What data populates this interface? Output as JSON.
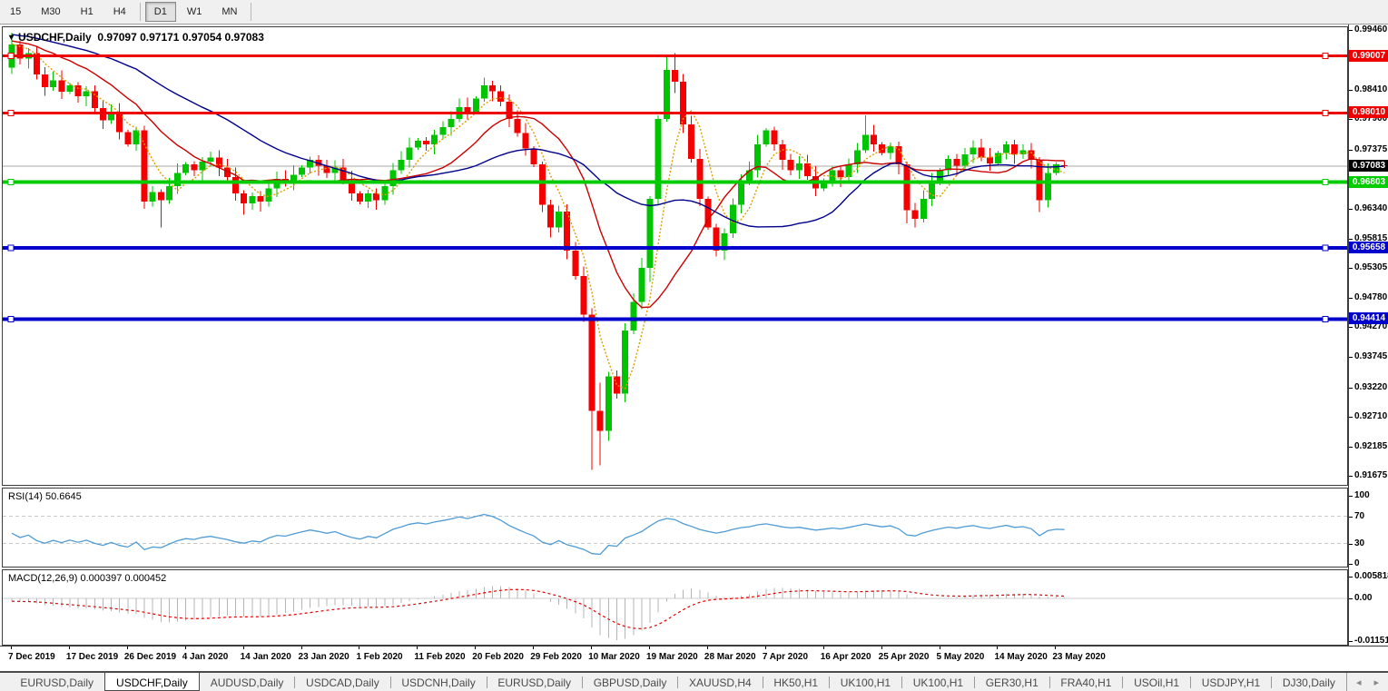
{
  "toolbar": {
    "timeframes": [
      "15",
      "M30",
      "H1",
      "H4",
      "D1",
      "W1",
      "MN"
    ],
    "active": "D1",
    "separators_after": [
      "H4",
      "MN"
    ]
  },
  "chart": {
    "dropdown_icon": "▾",
    "title": "USDCHF,Daily",
    "ohlc": "0.97097 0.97171 0.97054 0.97083"
  },
  "chart_data": {
    "type": "candlestick",
    "symbol": "USDCHF",
    "period": "Daily",
    "ohlc_header": {
      "open": "0.97097",
      "high": "0.97171",
      "low": "0.97054",
      "close": "0.97083"
    },
    "x_labels": [
      "7 Dec 2019",
      "17 Dec 2019",
      "26 Dec 2019",
      "4 Jan 2020",
      "14 Jan 2020",
      "23 Jan 2020",
      "1 Feb 2020",
      "11 Feb 2020",
      "20 Feb 2020",
      "29 Feb 2020",
      "10 Mar 2020",
      "19 Mar 2020",
      "28 Mar 2020",
      "7 Apr 2020",
      "16 Apr 2020",
      "25 Apr 2020",
      "5 May 2020",
      "14 May 2020",
      "23 May 2020"
    ],
    "bars_per_label": 7,
    "axis_ticks": [
      "0.99460",
      "0.98410",
      "0.97900",
      "0.97375",
      "0.96340",
      "0.95815",
      "0.95305",
      "0.94780",
      "0.94270",
      "0.93745",
      "0.93220",
      "0.92710",
      "0.92185",
      "0.91675"
    ],
    "levels": [
      {
        "value": 0.99007,
        "label": "0.99007",
        "color": "#ee0000",
        "thickness": 3,
        "kind": "resistance"
      },
      {
        "value": 0.9801,
        "label": "0.98010",
        "color": "#ee0000",
        "thickness": 3,
        "kind": "resistance"
      },
      {
        "value": 0.96803,
        "label": "0.96803",
        "color": "#00cc00",
        "thickness": 4,
        "kind": "support"
      },
      {
        "value": 0.95658,
        "label": "0.95658",
        "color": "#0000cc",
        "thickness": 4,
        "kind": "support"
      },
      {
        "value": 0.94414,
        "label": "0.94414",
        "color": "#0000cc",
        "thickness": 4,
        "kind": "support"
      }
    ],
    "current_price": {
      "value": 0.97083,
      "label": "0.97083",
      "line_color": "#a8a8a8",
      "badge_color": "#000000"
    },
    "up_color": "#00c400",
    "down_color": "#f40000",
    "candles_oc": [
      [
        0.988,
        0.9921
      ],
      [
        0.9921,
        0.9896
      ],
      [
        0.9896,
        0.9906
      ],
      [
        0.9906,
        0.9868
      ],
      [
        0.9868,
        0.9846
      ],
      [
        0.9846,
        0.9858
      ],
      [
        0.9858,
        0.9838
      ],
      [
        0.9838,
        0.9849
      ],
      [
        0.9849,
        0.983
      ],
      [
        0.983,
        0.9839
      ],
      [
        0.9839,
        0.981
      ],
      [
        0.981,
        0.9788
      ],
      [
        0.9788,
        0.9801
      ],
      [
        0.9801,
        0.9768
      ],
      [
        0.9768,
        0.9746
      ],
      [
        0.9746,
        0.9771
      ],
      [
        0.9771,
        0.9646
      ],
      [
        0.9646,
        0.9663
      ],
      [
        0.9663,
        0.9649
      ],
      [
        0.9649,
        0.9673
      ],
      [
        0.9673,
        0.9696
      ],
      [
        0.9696,
        0.9711
      ],
      [
        0.9711,
        0.9701
      ],
      [
        0.9701,
        0.9716
      ],
      [
        0.9716,
        0.9723
      ],
      [
        0.9723,
        0.9706
      ],
      [
        0.9706,
        0.9689
      ],
      [
        0.9689,
        0.9661
      ],
      [
        0.9661,
        0.9643
      ],
      [
        0.9643,
        0.9656
      ],
      [
        0.9656,
        0.9646
      ],
      [
        0.9646,
        0.9669
      ],
      [
        0.9669,
        0.9686
      ],
      [
        0.9686,
        0.9679
      ],
      [
        0.9679,
        0.9693
      ],
      [
        0.9693,
        0.9706
      ],
      [
        0.9706,
        0.9719
      ],
      [
        0.9719,
        0.9709
      ],
      [
        0.9709,
        0.9696
      ],
      [
        0.9696,
        0.9706
      ],
      [
        0.9706,
        0.9683
      ],
      [
        0.9683,
        0.9661
      ],
      [
        0.9661,
        0.9646
      ],
      [
        0.9646,
        0.9661
      ],
      [
        0.9661,
        0.9649
      ],
      [
        0.9649,
        0.9673
      ],
      [
        0.9673,
        0.9701
      ],
      [
        0.9701,
        0.9719
      ],
      [
        0.9719,
        0.9741
      ],
      [
        0.9741,
        0.9753
      ],
      [
        0.9753,
        0.9746
      ],
      [
        0.9746,
        0.9763
      ],
      [
        0.9763,
        0.9776
      ],
      [
        0.9776,
        0.9791
      ],
      [
        0.9791,
        0.9811
      ],
      [
        0.9811,
        0.9803
      ],
      [
        0.9803,
        0.9826
      ],
      [
        0.9826,
        0.9849
      ],
      [
        0.9849,
        0.9839
      ],
      [
        0.9839,
        0.9821
      ],
      [
        0.9821,
        0.9791
      ],
      [
        0.9791,
        0.9766
      ],
      [
        0.9766,
        0.9739
      ],
      [
        0.9739,
        0.9711
      ],
      [
        0.9711,
        0.9641
      ],
      [
        0.9641,
        0.9601
      ],
      [
        0.9601,
        0.9629
      ],
      [
        0.9629,
        0.9561
      ],
      [
        0.9561,
        0.9516
      ],
      [
        0.9516,
        0.9449
      ],
      [
        0.9449,
        0.9281
      ],
      [
        0.9281,
        0.9246
      ],
      [
        0.9246,
        0.9341
      ],
      [
        0.9341,
        0.9311
      ],
      [
        0.9311,
        0.9421
      ],
      [
        0.9421,
        0.9471
      ],
      [
        0.9471,
        0.9531
      ],
      [
        0.9531,
        0.9651
      ],
      [
        0.9651,
        0.9791
      ],
      [
        0.9791,
        0.9876
      ],
      [
        0.9876,
        0.9856
      ],
      [
        0.9856,
        0.9781
      ],
      [
        0.9781,
        0.9721
      ],
      [
        0.9721,
        0.9651
      ],
      [
        0.9651,
        0.9601
      ],
      [
        0.9601,
        0.9561
      ],
      [
        0.9561,
        0.9591
      ],
      [
        0.9591,
        0.9641
      ],
      [
        0.9641,
        0.9681
      ],
      [
        0.9681,
        0.9701
      ],
      [
        0.9701,
        0.9746
      ],
      [
        0.9746,
        0.9771
      ],
      [
        0.9771,
        0.9746
      ],
      [
        0.9746,
        0.9719
      ],
      [
        0.9719,
        0.9701
      ],
      [
        0.9701,
        0.9713
      ],
      [
        0.9713,
        0.9691
      ],
      [
        0.9691,
        0.9669
      ],
      [
        0.9669,
        0.9683
      ],
      [
        0.9683,
        0.9701
      ],
      [
        0.9701,
        0.9689
      ],
      [
        0.9689,
        0.9711
      ],
      [
        0.9711,
        0.9736
      ],
      [
        0.9736,
        0.9763
      ],
      [
        0.9763,
        0.9746
      ],
      [
        0.9746,
        0.9731
      ],
      [
        0.9731,
        0.9743
      ],
      [
        0.9743,
        0.9711
      ],
      [
        0.9711,
        0.9631
      ],
      [
        0.9631,
        0.9616
      ],
      [
        0.9616,
        0.9651
      ],
      [
        0.9651,
        0.9679
      ],
      [
        0.9679,
        0.9701
      ],
      [
        0.9701,
        0.9721
      ],
      [
        0.9721,
        0.9709
      ],
      [
        0.9709,
        0.9729
      ],
      [
        0.9729,
        0.9741
      ],
      [
        0.9741,
        0.9723
      ],
      [
        0.9723,
        0.9713
      ],
      [
        0.9713,
        0.9731
      ],
      [
        0.9731,
        0.9746
      ],
      [
        0.9746,
        0.9729
      ],
      [
        0.9729,
        0.9736
      ],
      [
        0.9736,
        0.9719
      ],
      [
        0.9719,
        0.9649
      ],
      [
        0.9649,
        0.9696
      ],
      [
        0.9696,
        0.9711
      ],
      [
        0.97097,
        0.97083
      ]
    ],
    "wick_overrides": {
      "0": [
        0.9941,
        0.9869
      ],
      "16": [
        0.9779,
        0.9634
      ],
      "18": [
        0.9668,
        0.9601
      ],
      "28": [
        0.9666,
        0.9623
      ],
      "57": [
        0.9863,
        0.9821
      ],
      "64": [
        0.9716,
        0.9628
      ],
      "70": [
        0.946,
        0.9178
      ],
      "71": [
        0.933,
        0.9186
      ],
      "77": [
        0.9656,
        0.9506
      ],
      "79": [
        0.9901,
        0.9786
      ],
      "80": [
        0.9906,
        0.9836
      ],
      "103": [
        0.9797,
        0.9731
      ],
      "108": [
        0.9716,
        0.9608
      ],
      "124": [
        0.9724,
        0.9628
      ],
      "127": [
        0.97171,
        0.97054
      ]
    },
    "prehistory": {
      "start": 0.997,
      "end": 0.9918,
      "count": 40,
      "wobble": 0.0008
    },
    "indicators": {
      "moving_averages": [
        {
          "name": "ma-fast",
          "period": 5,
          "color": "#e09c00",
          "style": "dashed"
        },
        {
          "name": "ma-mid",
          "period": 13,
          "color": "#cc0000",
          "style": "solid"
        },
        {
          "name": "ma-slow",
          "period": 30,
          "color": "#00008b",
          "style": "solid"
        }
      ],
      "rsi": {
        "label": "RSI(14) 50.6645",
        "period": 14,
        "value": "50.6645",
        "levels": [
          70,
          30
        ],
        "ticks": [
          "100",
          "70",
          "30",
          "0"
        ],
        "color": "#4f9bd5"
      },
      "macd": {
        "label": "MACD(12,26,9) 0.000397 0.000452",
        "fast": 12,
        "slow": 26,
        "signal": 9,
        "values": [
          "0.000397",
          "0.000452"
        ],
        "ticks": [
          "0.005818",
          "0.00",
          "-0.011514"
        ],
        "hist_color": "#b4b4b4",
        "signal_color": "#e00000"
      }
    }
  },
  "tabbar": {
    "items": [
      "EURUSD,Daily",
      "USDCHF,Daily",
      "AUDUSD,Daily",
      "USDCAD,Daily",
      "USDCNH,Daily",
      "EURUSD,Daily",
      "GBPUSD,Daily",
      "XAUUSD,H4",
      "HK50,H1",
      "UK100,H1",
      "UK100,H1",
      "GER30,H1",
      "FRA40,H1",
      "USOil,H1",
      "USDJPY,H1",
      "DJ30,Daily"
    ],
    "active_index": 1,
    "left_arrow": "◂",
    "right_arrow": "▸"
  }
}
